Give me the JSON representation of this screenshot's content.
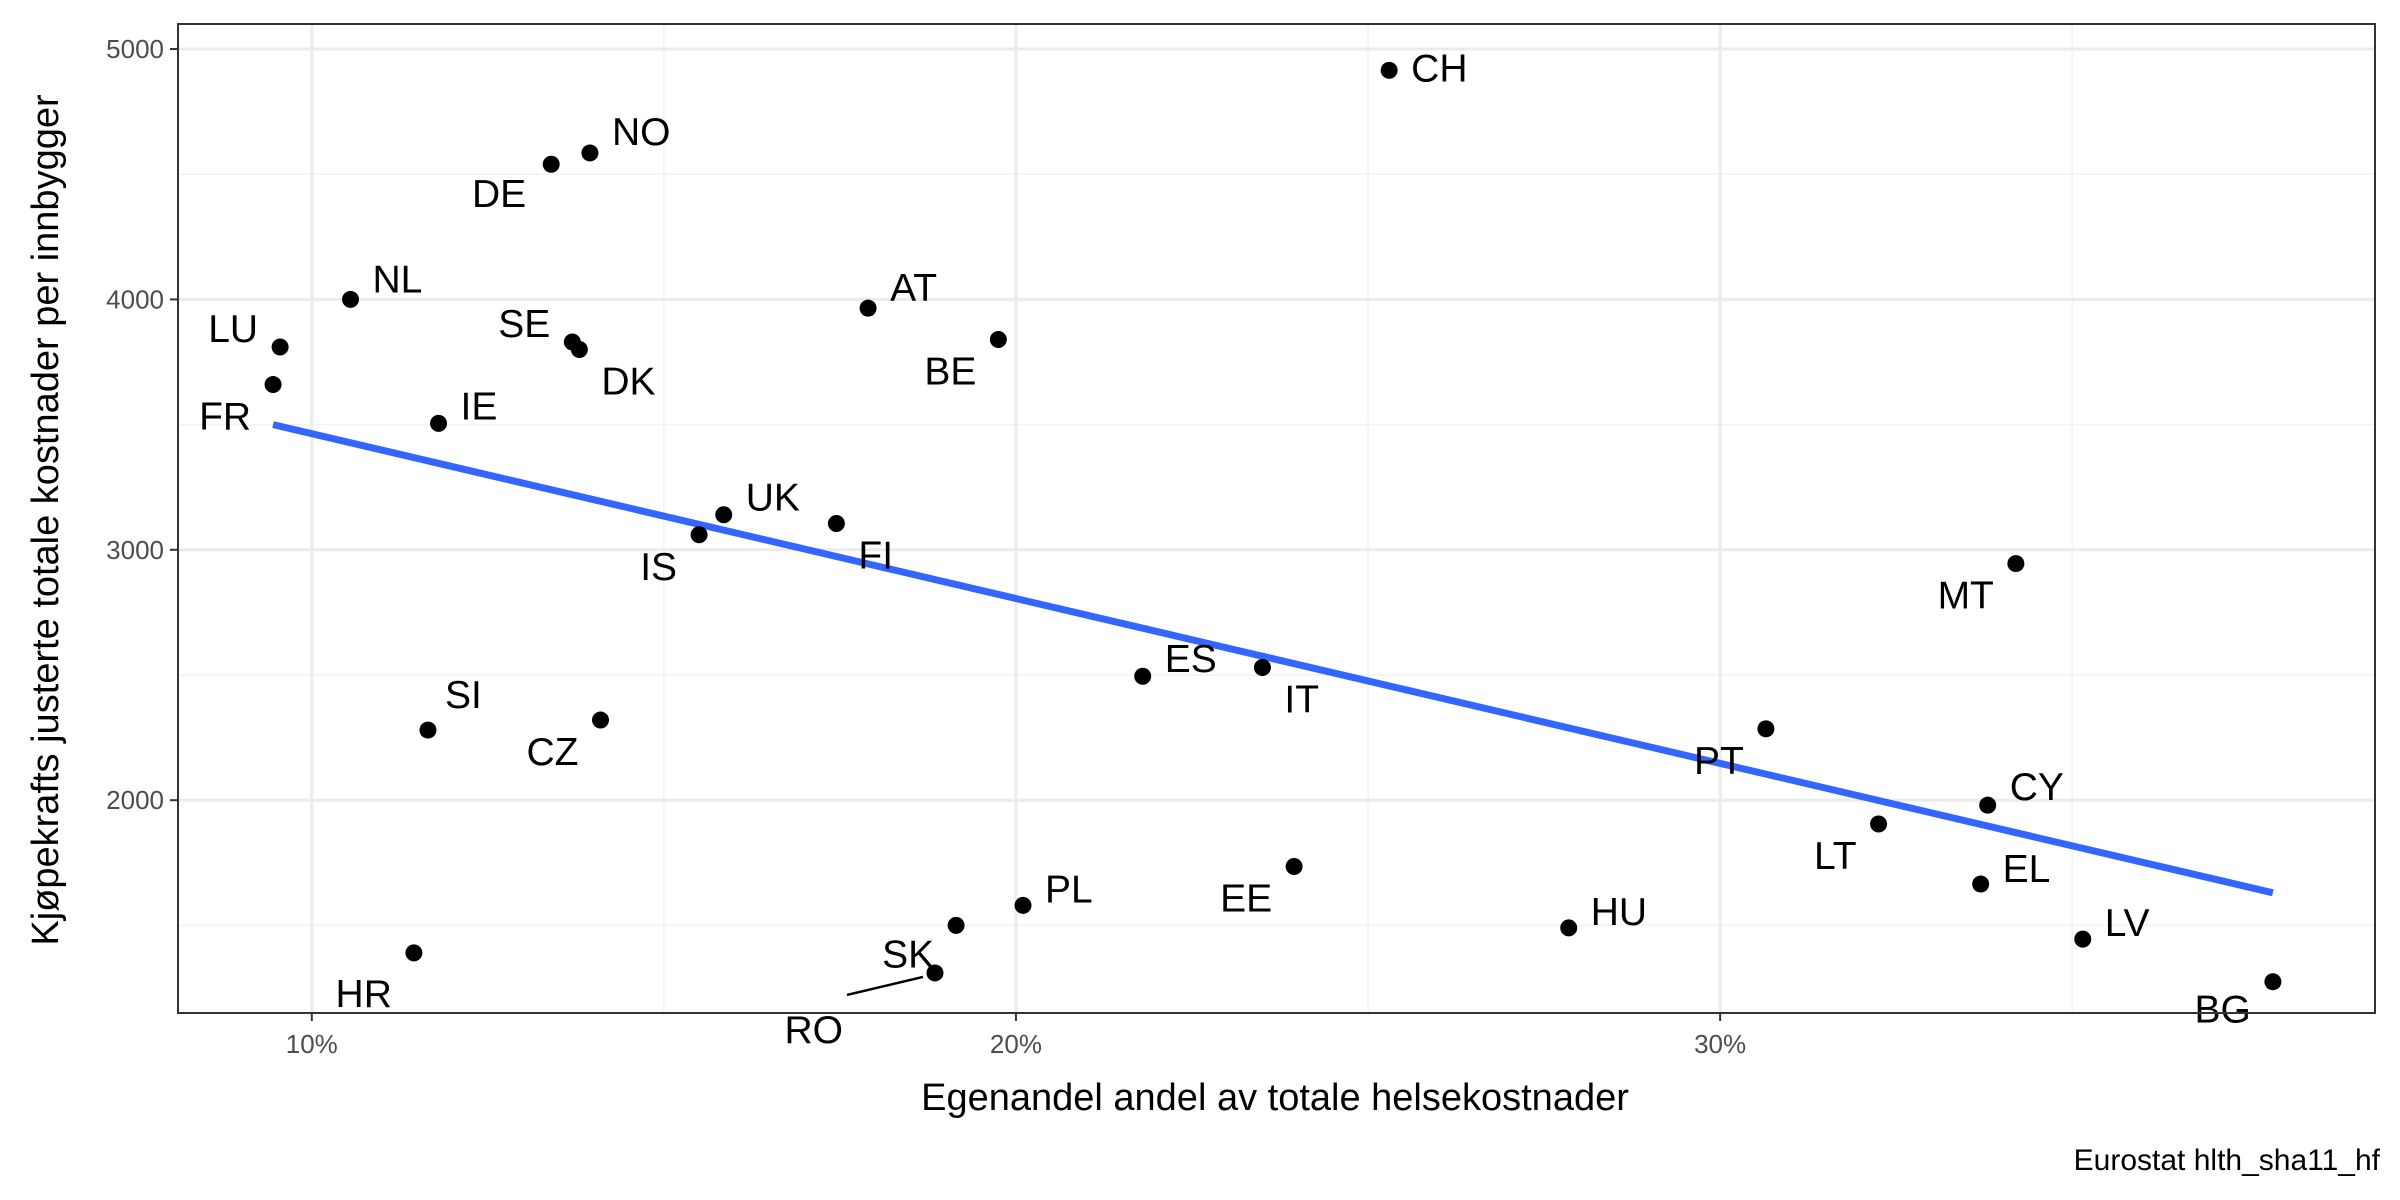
{
  "chart_data": {
    "type": "scatter",
    "xlabel": "Egenandel andel av totale helsekostnader",
    "ylabel": "Kjøpekrafts justerte totale kostnader per innbygger",
    "caption": "Eurostat hlth_sha11_hf",
    "xlim": [
      0.081,
      0.393
    ],
    "ylim": [
      1150,
      5100
    ],
    "x_ticks": [
      0.1,
      0.2,
      0.3
    ],
    "x_tick_labels": [
      "10%",
      "20%",
      "30%"
    ],
    "x_minor_ticks": [
      0.15,
      0.25,
      0.35
    ],
    "y_ticks": [
      2000,
      3000,
      4000,
      5000
    ],
    "y_tick_labels": [
      "2000",
      "3000",
      "4000",
      "5000"
    ],
    "y_minor_ticks": [
      1500,
      2500,
      3500,
      4500
    ],
    "grid": true,
    "point_color": "#000000",
    "trend_color": "#3366FF",
    "trend_line": {
      "x": [
        0.0945,
        0.3785
      ],
      "y": [
        3500,
        1630
      ]
    },
    "points": [
      {
        "label": "CH",
        "x": 0.253,
        "y": 4915
      },
      {
        "label": "NO",
        "x": 0.1395,
        "y": 4585
      },
      {
        "label": "DE",
        "x": 0.134,
        "y": 4540
      },
      {
        "label": "NL",
        "x": 0.1055,
        "y": 4000
      },
      {
        "label": "AT",
        "x": 0.179,
        "y": 3965
      },
      {
        "label": "BE",
        "x": 0.1975,
        "y": 3840
      },
      {
        "label": "SE",
        "x": 0.137,
        "y": 3830
      },
      {
        "label": "DK",
        "x": 0.138,
        "y": 3800
      },
      {
        "label": "LU",
        "x": 0.0955,
        "y": 3810
      },
      {
        "label": "FR",
        "x": 0.0945,
        "y": 3660
      },
      {
        "label": "IE",
        "x": 0.118,
        "y": 3505
      },
      {
        "label": "UK",
        "x": 0.1585,
        "y": 3140
      },
      {
        "label": "FI",
        "x": 0.1745,
        "y": 3105
      },
      {
        "label": "IS",
        "x": 0.155,
        "y": 3060
      },
      {
        "label": "MT",
        "x": 0.342,
        "y": 2945
      },
      {
        "label": "ES",
        "x": 0.218,
        "y": 2495
      },
      {
        "label": "IT",
        "x": 0.235,
        "y": 2530
      },
      {
        "label": "SI",
        "x": 0.1165,
        "y": 2280
      },
      {
        "label": "CZ",
        "x": 0.141,
        "y": 2320
      },
      {
        "label": "PT",
        "x": 0.3065,
        "y": 2285
      },
      {
        "label": "CY",
        "x": 0.338,
        "y": 1980
      },
      {
        "label": "LT",
        "x": 0.3225,
        "y": 1905
      },
      {
        "label": "EE",
        "x": 0.2395,
        "y": 1735
      },
      {
        "label": "EL",
        "x": 0.337,
        "y": 1665
      },
      {
        "label": "PL",
        "x": 0.201,
        "y": 1580
      },
      {
        "label": "SK",
        "x": 0.1915,
        "y": 1500
      },
      {
        "label": "HU",
        "x": 0.2785,
        "y": 1490
      },
      {
        "label": "LV",
        "x": 0.3515,
        "y": 1445
      },
      {
        "label": "HR",
        "x": 0.1145,
        "y": 1390
      },
      {
        "label": "RO",
        "x": 0.1885,
        "y": 1310
      },
      {
        "label": "BG",
        "x": 0.3785,
        "y": 1275
      }
    ]
  }
}
